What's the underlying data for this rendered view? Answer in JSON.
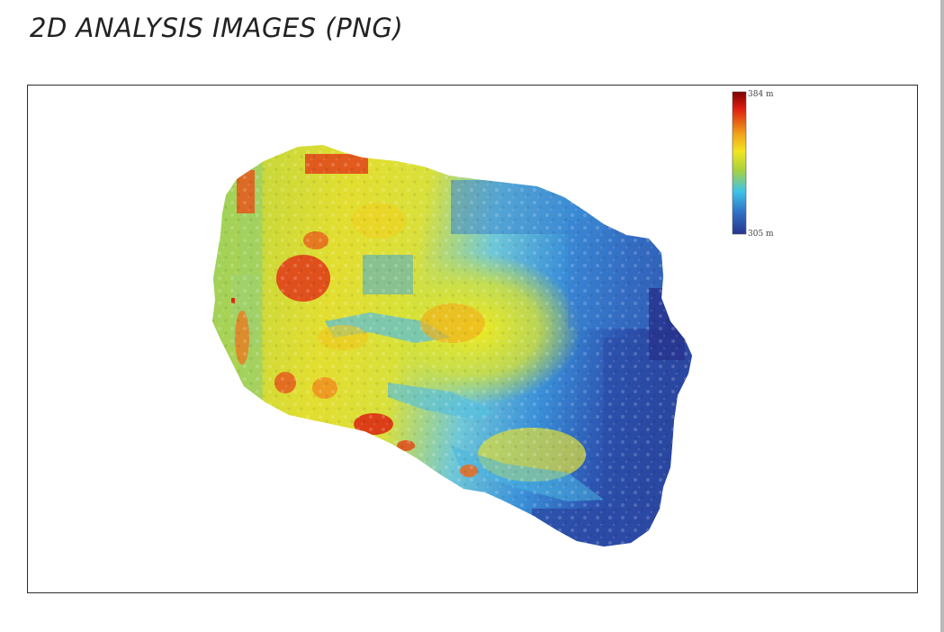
{
  "page": {
    "title": "2D ANALYSIS IMAGES (PNG)"
  },
  "figure": {
    "colorbar": {
      "max_label": "384 m",
      "min_label": "305 m",
      "colormap": [
        "#7f0000",
        "#dd1e10",
        "#f2e51f",
        "#b6d33a",
        "#3ec3e8",
        "#2f6fc4",
        "#27358f"
      ]
    }
  },
  "colors": {
    "frame": "#2d2d2d",
    "title": "#222222",
    "right_rule": "#b9b9b9"
  }
}
